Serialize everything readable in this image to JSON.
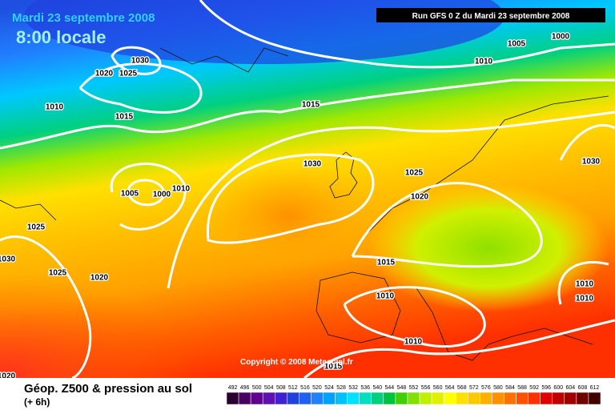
{
  "header": {
    "date": "Mardi 23 septembre 2008",
    "time": "8:00 locale",
    "run": "Run GFS 0 Z du Mardi 23 septembre 2008"
  },
  "isobar_labels": [
    "1030",
    "1020",
    "1025",
    "1010",
    "1015",
    "1015",
    "1005",
    "1000",
    "1010",
    "1030",
    "1025",
    "1020",
    "1005",
    "1000",
    "1010",
    "1030",
    "1025",
    "1030",
    "1025",
    "1020",
    "1015",
    "1010",
    "1010",
    "1010",
    "1010",
    "1015",
    "1020"
  ],
  "copyright": "Copyright © 2008 Meteociel.fr",
  "footer": {
    "title": "Géop. Z500 & pression au sol",
    "subtitle": "(+ 6h)"
  },
  "scale": {
    "labels": [
      "492",
      "496",
      "500",
      "504",
      "508",
      "512",
      "516",
      "520",
      "524",
      "528",
      "532",
      "536",
      "540",
      "544",
      "548",
      "552",
      "556",
      "560",
      "564",
      "568",
      "572",
      "576",
      "580",
      "584",
      "588",
      "592",
      "596",
      "600",
      "604",
      "608",
      "612"
    ]
  }
}
